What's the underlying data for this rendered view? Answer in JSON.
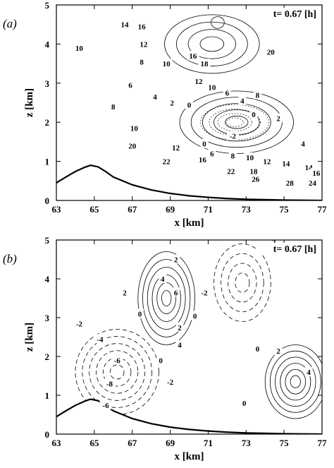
{
  "chart_data": [
    {
      "type": "contour",
      "panel_label": "(a)",
      "time_label": "t= 0.67 [h]",
      "xlabel": "x [km]",
      "ylabel": "z [km]",
      "xlim": [
        63,
        77
      ],
      "ylim": [
        0,
        5
      ],
      "xticks": [
        "63",
        "65",
        "67",
        "69",
        "71",
        "73",
        "75",
        "77"
      ],
      "yticks": [
        "0",
        "1",
        "2",
        "3",
        "4",
        "5"
      ],
      "line_styles": {
        "positive": "solid",
        "negative": "dotted"
      },
      "contour_labels": [
        {
          "text": "14",
          "x": 66.6,
          "z": 4.5
        },
        {
          "text": "16",
          "x": 67.5,
          "z": 4.45
        },
        {
          "text": "10",
          "x": 64.2,
          "z": 3.9
        },
        {
          "text": "12",
          "x": 67.6,
          "z": 4.0
        },
        {
          "text": "8",
          "x": 67.5,
          "z": 3.55
        },
        {
          "text": "10",
          "x": 68.8,
          "z": 3.5
        },
        {
          "text": "16",
          "x": 70.2,
          "z": 3.7
        },
        {
          "text": "18",
          "x": 70.8,
          "z": 3.5
        },
        {
          "text": "20",
          "x": 74.3,
          "z": 3.8
        },
        {
          "text": "6",
          "x": 66.9,
          "z": 2.95
        },
        {
          "text": "4",
          "x": 68.2,
          "z": 2.65
        },
        {
          "text": "12",
          "x": 70.5,
          "z": 3.05
        },
        {
          "text": "10",
          "x": 71.2,
          "z": 2.9
        },
        {
          "text": "6",
          "x": 72.0,
          "z": 2.75
        },
        {
          "text": "4",
          "x": 72.8,
          "z": 2.55
        },
        {
          "text": "8",
          "x": 73.6,
          "z": 2.7
        },
        {
          "text": "2",
          "x": 69.1,
          "z": 2.5
        },
        {
          "text": "0",
          "x": 70.0,
          "z": 2.45
        },
        {
          "text": "8",
          "x": 66.0,
          "z": 2.4
        },
        {
          "text": "0",
          "x": 73.4,
          "z": 2.2
        },
        {
          "text": "2",
          "x": 74.7,
          "z": 2.1
        },
        {
          "text": "-2",
          "x": 72.3,
          "z": 1.65
        },
        {
          "text": "10",
          "x": 67.1,
          "z": 1.85
        },
        {
          "text": "0",
          "x": 70.8,
          "z": 1.45
        },
        {
          "text": "4",
          "x": 76.0,
          "z": 1.45
        },
        {
          "text": "20",
          "x": 67.0,
          "z": 1.4
        },
        {
          "text": "12",
          "x": 69.3,
          "z": 1.35
        },
        {
          "text": "6",
          "x": 71.2,
          "z": 1.2
        },
        {
          "text": "8",
          "x": 72.3,
          "z": 1.15
        },
        {
          "text": "10",
          "x": 73.2,
          "z": 1.1
        },
        {
          "text": "12",
          "x": 74.1,
          "z": 1.0
        },
        {
          "text": "14",
          "x": 75.1,
          "z": 0.95
        },
        {
          "text": "22",
          "x": 68.8,
          "z": 1.0
        },
        {
          "text": "16",
          "x": 70.7,
          "z": 1.05
        },
        {
          "text": "14",
          "x": 76.3,
          "z": 0.85
        },
        {
          "text": "22",
          "x": 72.2,
          "z": 0.75
        },
        {
          "text": "18",
          "x": 73.4,
          "z": 0.75
        },
        {
          "text": "16",
          "x": 76.7,
          "z": 0.7
        },
        {
          "text": "26",
          "x": 73.5,
          "z": 0.55
        },
        {
          "text": "28",
          "x": 75.3,
          "z": 0.45
        },
        {
          "text": "24",
          "x": 76.5,
          "z": 0.45
        }
      ],
      "closed_contours": [
        {
          "cx": 71.5,
          "cz": 4.55,
          "rx": 0.35,
          "rz": 0.15,
          "style": "solid",
          "levels": 1
        },
        {
          "cx": 72.4,
          "cz": 2.0,
          "rx": 1.8,
          "rz": 0.45,
          "style": "dotted",
          "levels": 4
        },
        {
          "cx": 72.5,
          "cz": 2.0,
          "rx": 3.0,
          "rz": 0.8,
          "style": "solid",
          "levels": 5
        },
        {
          "cx": 71.2,
          "cz": 4.0,
          "rx": 2.5,
          "rz": 0.75,
          "style": "solid",
          "levels": 4
        }
      ]
    },
    {
      "type": "contour",
      "panel_label": "(b)",
      "time_label": "t= 0.67 [h]",
      "xlabel": "x [km]",
      "ylabel": "z [km]",
      "xlim": [
        63,
        77
      ],
      "ylim": [
        0,
        5
      ],
      "xticks": [
        "63",
        "65",
        "67",
        "69",
        "71",
        "73",
        "75",
        "77"
      ],
      "yticks": [
        "0",
        "1",
        "2",
        "3",
        "4",
        "5"
      ],
      "line_styles": {
        "positive": "solid",
        "negative": "dashed"
      },
      "contour_labels": [
        {
          "text": "-2",
          "x": 74.4,
          "z": 4.95
        },
        {
          "text": "2",
          "x": 69.3,
          "z": 4.5
        },
        {
          "text": "4",
          "x": 68.6,
          "z": 4.0
        },
        {
          "text": "2",
          "x": 66.6,
          "z": 3.65
        },
        {
          "text": "6",
          "x": 69.3,
          "z": 3.65
        },
        {
          "text": "-2",
          "x": 70.8,
          "z": 3.65
        },
        {
          "text": "0",
          "x": 67.4,
          "z": 3.1
        },
        {
          "text": "0",
          "x": 70.3,
          "z": 3.05
        },
        {
          "text": "2",
          "x": 69.5,
          "z": 2.75
        },
        {
          "text": "-2",
          "x": 64.2,
          "z": 2.85
        },
        {
          "text": "-4",
          "x": 65.3,
          "z": 2.45
        },
        {
          "text": "4",
          "x": 69.5,
          "z": 2.3
        },
        {
          "text": "0",
          "x": 73.6,
          "z": 2.2
        },
        {
          "text": "2",
          "x": 74.7,
          "z": 2.15
        },
        {
          "text": "-6",
          "x": 66.2,
          "z": 1.9
        },
        {
          "text": "0",
          "x": 68.5,
          "z": 1.9
        },
        {
          "text": "4",
          "x": 76.3,
          "z": 1.6
        },
        {
          "text": "-2",
          "x": 69.0,
          "z": 1.35
        },
        {
          "text": "-8",
          "x": 65.8,
          "z": 1.3
        },
        {
          "text": "0",
          "x": 72.9,
          "z": 0.8
        },
        {
          "text": "-6",
          "x": 65.6,
          "z": 0.75
        }
      ],
      "closed_contours": [
        {
          "cx": 68.8,
          "cz": 3.5,
          "rx": 1.5,
          "rz": 1.2,
          "style": "solid",
          "levels": 6
        },
        {
          "cx": 72.8,
          "cz": 3.9,
          "rx": 1.5,
          "rz": 1.0,
          "style": "dashed",
          "levels": 4
        },
        {
          "cx": 75.6,
          "cz": 1.35,
          "rx": 1.6,
          "rz": 0.95,
          "style": "solid",
          "levels": 6
        },
        {
          "cx": 66.2,
          "cz": 1.6,
          "rx": 2.2,
          "rz": 1.1,
          "style": "dashed",
          "levels": 6
        }
      ]
    }
  ],
  "terrain": {
    "points": [
      [
        63.0,
        0.45
      ],
      [
        63.5,
        0.6
      ],
      [
        64.0,
        0.74
      ],
      [
        64.5,
        0.85
      ],
      [
        64.8,
        0.9
      ],
      [
        65.2,
        0.86
      ],
      [
        65.6,
        0.74
      ],
      [
        66.0,
        0.6
      ],
      [
        67.0,
        0.4
      ],
      [
        68.0,
        0.27
      ],
      [
        69.0,
        0.18
      ],
      [
        70.0,
        0.12
      ],
      [
        71.0,
        0.08
      ],
      [
        72.0,
        0.05
      ],
      [
        73.0,
        0.03
      ],
      [
        75.0,
        0.01
      ],
      [
        77.0,
        0.0
      ]
    ]
  }
}
